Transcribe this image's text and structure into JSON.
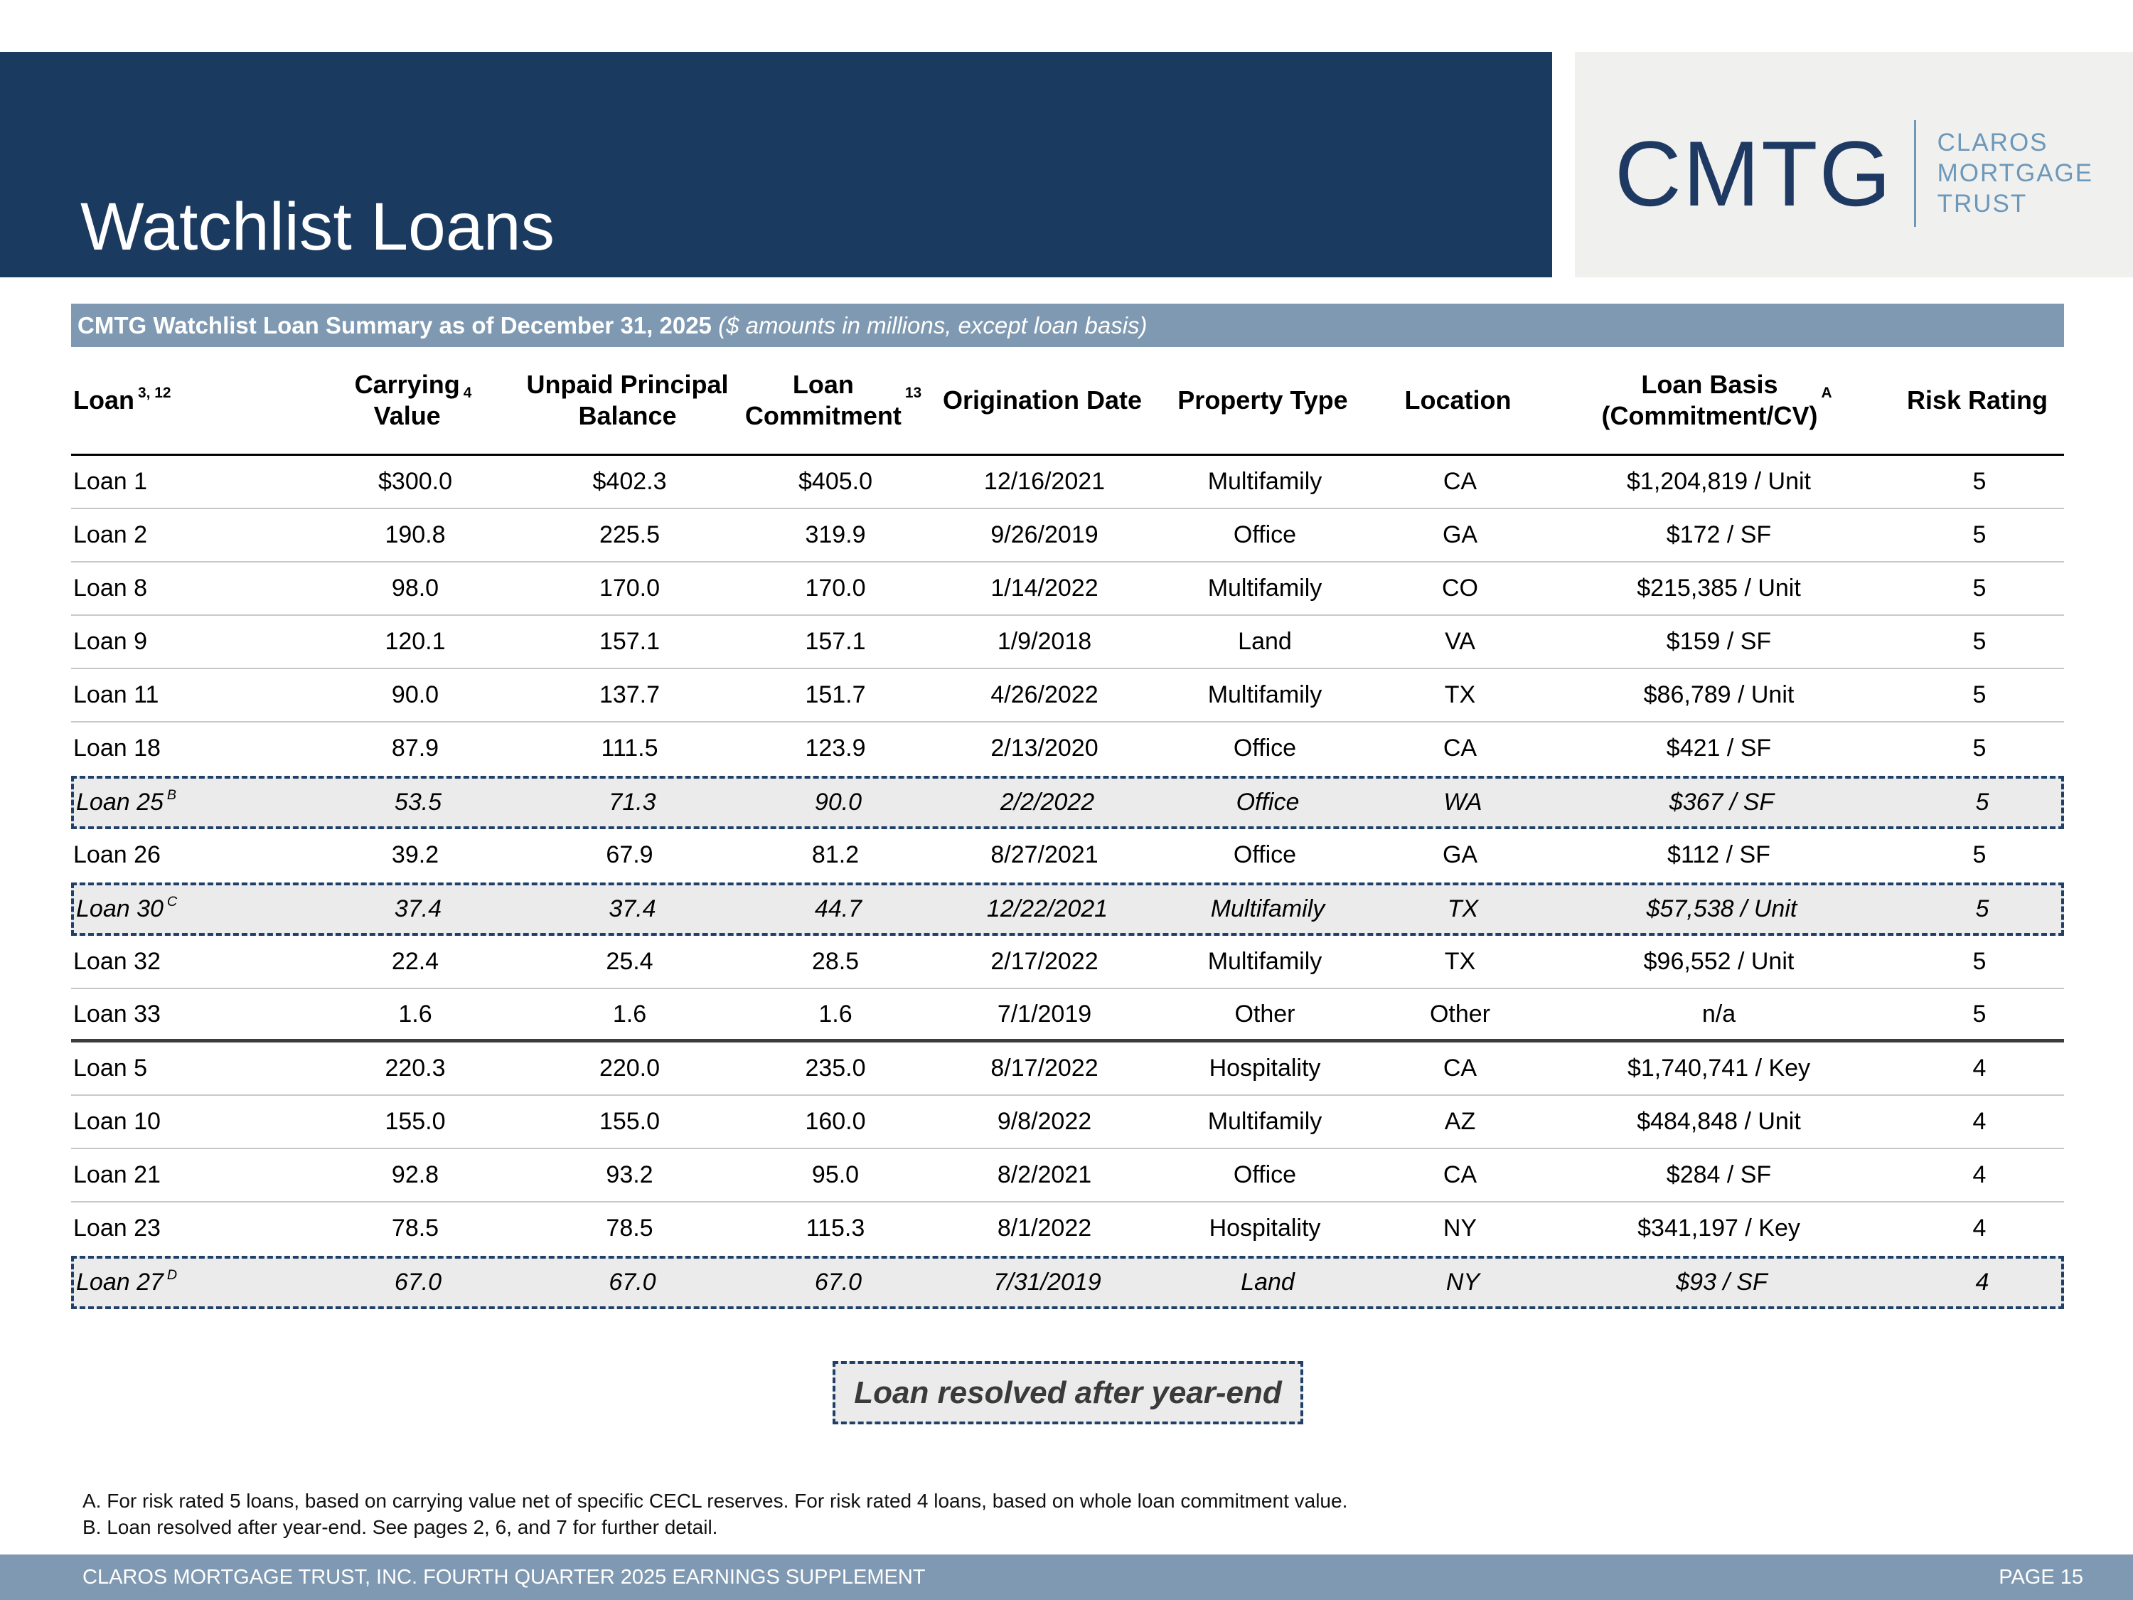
{
  "header": {
    "title": "Watchlist Loans"
  },
  "logo": {
    "ticker": "CMTG",
    "company_lines": [
      "CLAROS",
      "MORTGAGE",
      "TRUST"
    ]
  },
  "table_banner": {
    "title_bold": "CMTG Watchlist Loan Summary as of December 31, 2025",
    "title_italic": " ($ amounts in millions, except loan basis)"
  },
  "table": {
    "headers": [
      {
        "label": "Loan",
        "sup": "3, 12"
      },
      {
        "label": "Carrying\nValue",
        "sup": "4"
      },
      {
        "label": "Unpaid Principal\nBalance",
        "sup": ""
      },
      {
        "label": "Loan\nCommitment",
        "sup": "13"
      },
      {
        "label": "Origination Date",
        "sup": ""
      },
      {
        "label": "Property Type",
        "sup": ""
      },
      {
        "label": "Location",
        "sup": ""
      },
      {
        "label": "Loan Basis\n(Commitment/CV)",
        "sup": "A"
      },
      {
        "label": "Risk Rating",
        "sup": ""
      }
    ],
    "rows": [
      {
        "loan": "Loan 1",
        "loan_sup": "",
        "highlighted": false,
        "group_end": false,
        "cells": [
          "$300.0",
          "$402.3",
          "$405.0",
          "12/16/2021",
          "Multifamily",
          "CA",
          "$1,204,819 / Unit",
          "5"
        ]
      },
      {
        "loan": "Loan 2",
        "loan_sup": "",
        "highlighted": false,
        "group_end": false,
        "cells": [
          "190.8",
          "225.5",
          "319.9",
          "9/26/2019",
          "Office",
          "GA",
          "$172 / SF",
          "5"
        ]
      },
      {
        "loan": "Loan 8",
        "loan_sup": "",
        "highlighted": false,
        "group_end": false,
        "cells": [
          "98.0",
          "170.0",
          "170.0",
          "1/14/2022",
          "Multifamily",
          "CO",
          "$215,385 / Unit",
          "5"
        ]
      },
      {
        "loan": "Loan 9",
        "loan_sup": "",
        "highlighted": false,
        "group_end": false,
        "cells": [
          "120.1",
          "157.1",
          "157.1",
          "1/9/2018",
          "Land",
          "VA",
          "$159 / SF",
          "5"
        ]
      },
      {
        "loan": "Loan 11",
        "loan_sup": "",
        "highlighted": false,
        "group_end": false,
        "cells": [
          "90.0",
          "137.7",
          "151.7",
          "4/26/2022",
          "Multifamily",
          "TX",
          "$86,789 / Unit",
          "5"
        ]
      },
      {
        "loan": "Loan 18",
        "loan_sup": "",
        "highlighted": false,
        "group_end": false,
        "cells": [
          "87.9",
          "111.5",
          "123.9",
          "2/13/2020",
          "Office",
          "CA",
          "$421 / SF",
          "5"
        ]
      },
      {
        "loan": "Loan 25",
        "loan_sup": "B",
        "highlighted": true,
        "group_end": false,
        "cells": [
          "53.5",
          "71.3",
          "90.0",
          "2/2/2022",
          "Office",
          "WA",
          "$367 / SF",
          "5"
        ]
      },
      {
        "loan": "Loan 26",
        "loan_sup": "",
        "highlighted": false,
        "group_end": false,
        "cells": [
          "39.2",
          "67.9",
          "81.2",
          "8/27/2021",
          "Office",
          "GA",
          "$112 / SF",
          "5"
        ]
      },
      {
        "loan": "Loan 30",
        "loan_sup": "C",
        "highlighted": true,
        "group_end": false,
        "cells": [
          "37.4",
          "37.4",
          "44.7",
          "12/22/2021",
          "Multifamily",
          "TX",
          "$57,538 / Unit",
          "5"
        ]
      },
      {
        "loan": "Loan 32",
        "loan_sup": "",
        "highlighted": false,
        "group_end": false,
        "cells": [
          "22.4",
          "25.4",
          "28.5",
          "2/17/2022",
          "Multifamily",
          "TX",
          "$96,552 / Unit",
          "5"
        ]
      },
      {
        "loan": "Loan 33",
        "loan_sup": "",
        "highlighted": false,
        "group_end": true,
        "cells": [
          "1.6",
          "1.6",
          "1.6",
          "7/1/2019",
          "Other",
          "Other",
          "n/a",
          "5"
        ]
      },
      {
        "loan": "Loan 5",
        "loan_sup": "",
        "highlighted": false,
        "group_end": false,
        "cells": [
          "220.3",
          "220.0",
          "235.0",
          "8/17/2022",
          "Hospitality",
          "CA",
          "$1,740,741 / Key",
          "4"
        ]
      },
      {
        "loan": "Loan 10",
        "loan_sup": "",
        "highlighted": false,
        "group_end": false,
        "cells": [
          "155.0",
          "155.0",
          "160.0",
          "9/8/2022",
          "Multifamily",
          "AZ",
          "$484,848 / Unit",
          "4"
        ]
      },
      {
        "loan": "Loan 21",
        "loan_sup": "",
        "highlighted": false,
        "group_end": false,
        "cells": [
          "92.8",
          "93.2",
          "95.0",
          "8/2/2021",
          "Office",
          "CA",
          "$284 / SF",
          "4"
        ]
      },
      {
        "loan": "Loan 23",
        "loan_sup": "",
        "highlighted": false,
        "group_end": false,
        "cells": [
          "78.5",
          "78.5",
          "115.3",
          "8/1/2022",
          "Hospitality",
          "NY",
          "$341,197 / Key",
          "4"
        ]
      },
      {
        "loan": "Loan 27",
        "loan_sup": "D",
        "highlighted": true,
        "group_end": false,
        "cells": [
          "67.0",
          "67.0",
          "67.0",
          "7/31/2019",
          "Land",
          "NY",
          "$93 / SF",
          "4"
        ]
      }
    ]
  },
  "legend": {
    "label": "Loan resolved after year-end"
  },
  "footnotes": [
    "A. For risk rated 5 loans, based on carrying value net of specific CECL reserves. For risk rated 4 loans, based on whole loan commitment value.",
    "B. Loan resolved after year-end. See pages 2, 6, and 7 for further detail."
  ],
  "footer": {
    "left": "CLAROS MORTGAGE TRUST, INC. FOURTH QUARTER 2025 EARNINGS SUPPLEMENT",
    "right": "PAGE 15"
  },
  "colors": {
    "navy_band": "#1B3A5F",
    "slate_band": "#7E99B1",
    "logo_navy": "#1E3A63",
    "logo_blue": "#6C98BA",
    "highlight_bg": "#EBEBEB",
    "dashed_border": "#1F4068"
  }
}
